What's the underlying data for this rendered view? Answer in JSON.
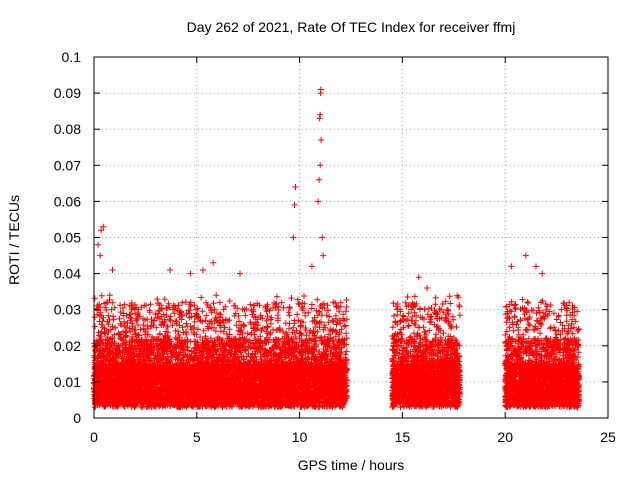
{
  "chart_data": {
    "type": "scatter",
    "title": "Day 262 of 2021, Rate Of TEC Index for receiver ffmj",
    "xlabel": "GPS time / hours",
    "ylabel": "ROTI / TECUs",
    "xlim": [
      0,
      25
    ],
    "ylim": [
      0,
      0.1
    ],
    "x_ticks": [
      0,
      5,
      10,
      15,
      20,
      25
    ],
    "x_tick_labels": [
      "0",
      "5",
      "10",
      "15",
      "20",
      "25"
    ],
    "y_ticks": [
      0,
      0.01,
      0.02,
      0.03,
      0.04,
      0.05,
      0.06,
      0.07,
      0.08,
      0.09,
      0.1
    ],
    "y_tick_labels": [
      "0",
      "0.01",
      "0.02",
      "0.03",
      "0.04",
      "0.05",
      "0.06",
      "0.07",
      "0.08",
      "0.09",
      "0.1"
    ],
    "grid": true,
    "marker": "+",
    "series": [
      {
        "name": "ROTI",
        "color": "#ff0000",
        "segments": [
          {
            "x_start": 0.0,
            "x_end": 12.3,
            "typical_max": 0.03
          },
          {
            "x_start": 14.5,
            "x_end": 17.8,
            "typical_max": 0.03
          },
          {
            "x_start": 20.0,
            "x_end": 23.6,
            "typical_max": 0.03
          }
        ],
        "peaks": [
          {
            "x": 0.2,
            "y": 0.048
          },
          {
            "x": 0.35,
            "y": 0.052
          },
          {
            "x": 0.45,
            "y": 0.053
          },
          {
            "x": 0.3,
            "y": 0.045
          },
          {
            "x": 0.9,
            "y": 0.041
          },
          {
            "x": 3.7,
            "y": 0.041
          },
          {
            "x": 4.7,
            "y": 0.04
          },
          {
            "x": 5.3,
            "y": 0.041
          },
          {
            "x": 5.8,
            "y": 0.043
          },
          {
            "x": 7.1,
            "y": 0.04
          },
          {
            "x": 9.7,
            "y": 0.05
          },
          {
            "x": 9.75,
            "y": 0.059
          },
          {
            "x": 9.8,
            "y": 0.064
          },
          {
            "x": 10.6,
            "y": 0.042
          },
          {
            "x": 10.9,
            "y": 0.06
          },
          {
            "x": 10.95,
            "y": 0.066
          },
          {
            "x": 11.0,
            "y": 0.07
          },
          {
            "x": 11.05,
            "y": 0.077
          },
          {
            "x": 10.98,
            "y": 0.083
          },
          {
            "x": 11.0,
            "y": 0.084
          },
          {
            "x": 11.02,
            "y": 0.09
          },
          {
            "x": 11.03,
            "y": 0.091
          },
          {
            "x": 11.1,
            "y": 0.05
          },
          {
            "x": 11.15,
            "y": 0.045
          },
          {
            "x": 15.8,
            "y": 0.039
          },
          {
            "x": 16.2,
            "y": 0.036
          },
          {
            "x": 20.3,
            "y": 0.042
          },
          {
            "x": 21.0,
            "y": 0.045
          },
          {
            "x": 21.5,
            "y": 0.042
          },
          {
            "x": 21.8,
            "y": 0.04
          }
        ]
      }
    ]
  }
}
